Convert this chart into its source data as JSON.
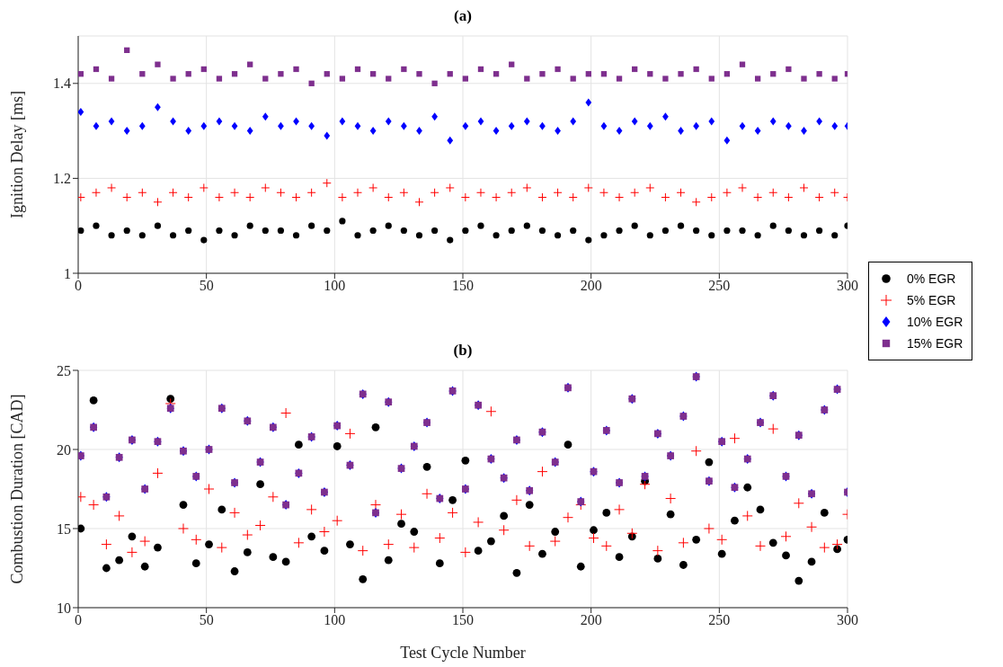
{
  "chart_data": [
    {
      "type": "scatter",
      "title": "(a)",
      "ylabel": "Ignition Delay [ms]",
      "xlim": [
        0,
        300
      ],
      "xticks": [
        0,
        50,
        100,
        150,
        200,
        250,
        300
      ],
      "ylim": [
        1,
        1.5
      ],
      "yticks": [
        1,
        1.2,
        1.4
      ],
      "grid": true,
      "legend": "right",
      "x": [
        1,
        7,
        13,
        19,
        25,
        31,
        37,
        43,
        49,
        55,
        61,
        67,
        73,
        79,
        85,
        91,
        97,
        103,
        109,
        115,
        121,
        127,
        133,
        139,
        145,
        151,
        157,
        163,
        169,
        175,
        181,
        187,
        193,
        199,
        205,
        211,
        217,
        223,
        229,
        235,
        241,
        247,
        253,
        259,
        265,
        271,
        277,
        283,
        289,
        295,
        300
      ],
      "series": [
        {
          "name": "0% EGR",
          "color": "#000000",
          "marker": "circle",
          "values": [
            1.09,
            1.1,
            1.08,
            1.09,
            1.08,
            1.1,
            1.08,
            1.09,
            1.07,
            1.09,
            1.08,
            1.1,
            1.09,
            1.09,
            1.08,
            1.1,
            1.09,
            1.11,
            1.08,
            1.09,
            1.1,
            1.09,
            1.08,
            1.09,
            1.07,
            1.09,
            1.1,
            1.08,
            1.09,
            1.1,
            1.09,
            1.08,
            1.09,
            1.07,
            1.08,
            1.09,
            1.1,
            1.08,
            1.09,
            1.1,
            1.09,
            1.08,
            1.09,
            1.09,
            1.08,
            1.1,
            1.09,
            1.08,
            1.09,
            1.08,
            1.1
          ]
        },
        {
          "name": "5% EGR",
          "color": "#ff0000",
          "marker": "cross",
          "values": [
            1.16,
            1.17,
            1.18,
            1.16,
            1.17,
            1.15,
            1.17,
            1.16,
            1.18,
            1.16,
            1.17,
            1.16,
            1.18,
            1.17,
            1.16,
            1.17,
            1.19,
            1.16,
            1.17,
            1.18,
            1.16,
            1.17,
            1.15,
            1.17,
            1.18,
            1.16,
            1.17,
            1.16,
            1.17,
            1.18,
            1.16,
            1.17,
            1.16,
            1.18,
            1.17,
            1.16,
            1.17,
            1.18,
            1.16,
            1.17,
            1.15,
            1.16,
            1.17,
            1.18,
            1.16,
            1.17,
            1.16,
            1.18,
            1.16,
            1.17,
            1.16
          ]
        },
        {
          "name": "10% EGR",
          "color": "#0000ff",
          "marker": "diamond",
          "values": [
            1.34,
            1.31,
            1.32,
            1.3,
            1.31,
            1.35,
            1.32,
            1.3,
            1.31,
            1.32,
            1.31,
            1.3,
            1.33,
            1.31,
            1.32,
            1.31,
            1.29,
            1.32,
            1.31,
            1.3,
            1.32,
            1.31,
            1.3,
            1.33,
            1.28,
            1.31,
            1.32,
            1.3,
            1.31,
            1.32,
            1.31,
            1.3,
            1.32,
            1.36,
            1.31,
            1.3,
            1.32,
            1.31,
            1.33,
            1.3,
            1.31,
            1.32,
            1.28,
            1.31,
            1.3,
            1.32,
            1.31,
            1.3,
            1.32,
            1.31,
            1.31
          ]
        },
        {
          "name": "15% EGR",
          "color": "#7e2f8e",
          "marker": "square",
          "values": [
            1.42,
            1.43,
            1.41,
            1.47,
            1.42,
            1.44,
            1.41,
            1.42,
            1.43,
            1.41,
            1.42,
            1.44,
            1.41,
            1.42,
            1.43,
            1.4,
            1.42,
            1.41,
            1.43,
            1.42,
            1.41,
            1.43,
            1.42,
            1.4,
            1.42,
            1.41,
            1.43,
            1.42,
            1.44,
            1.41,
            1.42,
            1.43,
            1.41,
            1.42,
            1.42,
            1.41,
            1.43,
            1.42,
            1.41,
            1.42,
            1.43,
            1.41,
            1.42,
            1.44,
            1.41,
            1.42,
            1.43,
            1.41,
            1.42,
            1.41,
            1.42
          ]
        }
      ]
    },
    {
      "type": "scatter",
      "title": "(b)",
      "xlabel": "Test Cycle Number",
      "ylabel": "Combustion Duration [CAD]",
      "xlim": [
        0,
        300
      ],
      "xticks": [
        0,
        50,
        100,
        150,
        200,
        250,
        300
      ],
      "ylim": [
        10,
        25
      ],
      "yticks": [
        10,
        15,
        20,
        25
      ],
      "grid": true,
      "x": [
        1,
        6,
        11,
        16,
        21,
        26,
        31,
        36,
        41,
        46,
        51,
        56,
        61,
        66,
        71,
        76,
        81,
        86,
        91,
        96,
        101,
        106,
        111,
        116,
        121,
        126,
        131,
        136,
        141,
        146,
        151,
        156,
        161,
        166,
        171,
        176,
        181,
        186,
        191,
        196,
        201,
        206,
        211,
        216,
        221,
        226,
        231,
        236,
        241,
        246,
        251,
        256,
        261,
        266,
        271,
        276,
        281,
        286,
        291,
        296,
        300
      ],
      "series": [
        {
          "color": "#000000",
          "marker": "circle",
          "values": [
            15.0,
            23.1,
            12.5,
            13.0,
            14.5,
            12.6,
            13.8,
            23.2,
            16.5,
            12.8,
            14.0,
            16.2,
            12.3,
            13.5,
            17.8,
            13.2,
            12.9,
            20.3,
            14.5,
            13.6,
            20.2,
            14.0,
            11.8,
            21.4,
            13.0,
            15.3,
            14.8,
            18.9,
            12.8,
            16.8,
            19.3,
            13.6,
            14.2,
            15.8,
            12.2,
            16.5,
            13.4,
            14.8,
            20.3,
            12.6,
            14.9,
            16.0,
            13.2,
            14.5,
            18.0,
            13.1,
            15.9,
            12.7,
            14.3,
            19.2,
            13.4,
            15.5,
            17.6,
            16.2,
            14.1,
            13.3,
            11.7,
            12.9,
            16.0,
            13.7,
            14.3
          ]
        },
        {
          "color": "#ff0000",
          "marker": "cross",
          "values": [
            17.0,
            16.5,
            14.0,
            15.8,
            13.5,
            14.2,
            18.5,
            22.9,
            15.0,
            14.3,
            17.5,
            13.8,
            16.0,
            14.6,
            15.2,
            17.0,
            22.3,
            14.1,
            16.2,
            14.8,
            15.5,
            21.0,
            13.6,
            16.5,
            14.0,
            15.9,
            13.8,
            17.2,
            14.4,
            16.0,
            13.5,
            15.4,
            22.4,
            14.9,
            16.8,
            13.9,
            18.6,
            14.2,
            15.7,
            16.5,
            14.4,
            13.9,
            16.2,
            14.7,
            17.8,
            13.6,
            16.9,
            14.1,
            19.9,
            15.0,
            14.3,
            20.7,
            15.8,
            13.9,
            21.3,
            14.5,
            16.6,
            15.1,
            13.8,
            14.0,
            15.9
          ]
        },
        {
          "color": "#0000ff",
          "marker": "diamond",
          "values": [
            19.6,
            21.4,
            17.0,
            19.5,
            20.6,
            17.5,
            20.5,
            22.6,
            19.9,
            18.3,
            20.0,
            22.6,
            17.9,
            21.8,
            19.2,
            21.4,
            16.5,
            18.5,
            20.8,
            17.3,
            21.5,
            19.0,
            23.5,
            16.0,
            23.0,
            18.8,
            20.2,
            21.7,
            16.9,
            23.7,
            17.5,
            22.8,
            19.4,
            18.2,
            20.6,
            17.4,
            21.1,
            19.2,
            23.9,
            16.7,
            18.6,
            21.2,
            17.9,
            23.2,
            18.3,
            21.0,
            19.6,
            22.1,
            24.6,
            18.0,
            20.5,
            17.6,
            19.4,
            21.7,
            23.4,
            18.3,
            20.9,
            17.2,
            22.5,
            23.8,
            17.3
          ]
        },
        {
          "color": "#7e2f8e",
          "marker": "square",
          "values": [
            19.6,
            21.4,
            17.0,
            19.5,
            20.6,
            17.5,
            20.5,
            22.6,
            19.9,
            18.3,
            20.0,
            22.6,
            17.9,
            21.8,
            19.2,
            21.4,
            16.5,
            18.5,
            20.8,
            17.3,
            21.5,
            19.0,
            23.5,
            16.0,
            23.0,
            18.8,
            20.2,
            21.7,
            16.9,
            23.7,
            17.5,
            22.8,
            19.4,
            18.2,
            20.6,
            17.4,
            21.1,
            19.2,
            23.9,
            16.7,
            18.6,
            21.2,
            17.9,
            23.2,
            18.3,
            21.0,
            19.6,
            22.1,
            24.6,
            18.0,
            20.5,
            17.6,
            19.4,
            21.7,
            23.4,
            18.3,
            20.9,
            17.2,
            22.5,
            23.8,
            17.3
          ]
        }
      ]
    }
  ]
}
